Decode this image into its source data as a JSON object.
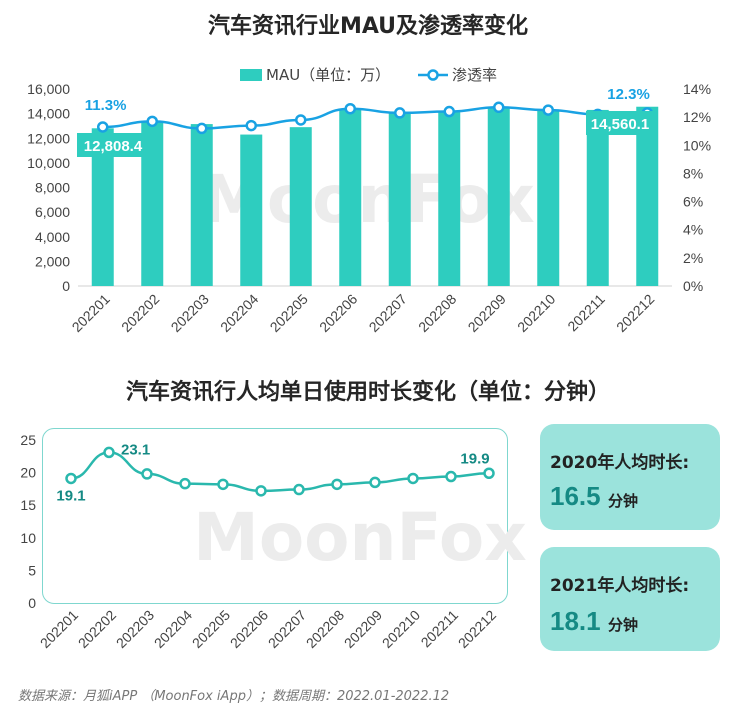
{
  "watermark": "MoonFox",
  "footer": "数据来源：月狐iAPP （MoonFox iApp）；数据周期：2022.01-2022.12",
  "colors": {
    "bar": "#2ecdbf",
    "line": "#19a2e3",
    "line2": "#2ab8ad",
    "card": "#9be3dc",
    "value_text": "#158a84"
  },
  "cards": [
    {
      "label": "2020年人均时长:",
      "value": "16.5",
      "unit": "分钟"
    },
    {
      "label": "2021年人均时长:",
      "value": "18.1",
      "unit": "分钟"
    }
  ],
  "chart_data": [
    {
      "type": "bar",
      "title": "汽车资讯行业MAU及渗透率变化",
      "categories": [
        "202201",
        "202202",
        "202203",
        "202204",
        "202205",
        "202206",
        "202207",
        "202208",
        "202209",
        "202210",
        "202211",
        "202212"
      ],
      "series": [
        {
          "name": "MAU（单位：万）",
          "type": "bar",
          "axis": "left",
          "values": [
            12808.4,
            13350,
            13150,
            12300,
            12900,
            14300,
            14150,
            14250,
            14550,
            14350,
            14300,
            14560.1
          ]
        },
        {
          "name": "渗透率",
          "type": "line",
          "axis": "right",
          "values": [
            11.3,
            11.7,
            11.2,
            11.4,
            11.8,
            12.6,
            12.3,
            12.4,
            12.7,
            12.5,
            12.2,
            12.3
          ]
        }
      ],
      "left_ticks": [
        "0",
        "2,000",
        "4,000",
        "6,000",
        "8,000",
        "10,000",
        "12,000",
        "14,000",
        "16,000"
      ],
      "right_ticks": [
        "0%",
        "2%",
        "4%",
        "6%",
        "8%",
        "10%",
        "12%",
        "14%"
      ],
      "ylim_left": [
        0,
        16000
      ],
      "ylim_right": [
        0,
        14
      ],
      "legend_position": "top",
      "data_labels": {
        "bar_first": "12,808.4",
        "bar_last": "14,560.1",
        "line_first": "11.3%",
        "line_last": "12.3%"
      }
    },
    {
      "type": "line",
      "title": "汽车资讯行人均单日使用时长变化（单位：分钟）",
      "categories": [
        "202201",
        "202202",
        "202203",
        "202204",
        "202205",
        "202206",
        "202207",
        "202208",
        "202209",
        "202210",
        "202211",
        "202212"
      ],
      "values": [
        19.1,
        23.1,
        19.8,
        18.3,
        18.2,
        17.2,
        17.4,
        18.2,
        18.5,
        19.1,
        19.4,
        19.9
      ],
      "y_ticks": [
        "0",
        "5",
        "10",
        "15",
        "20",
        "25"
      ],
      "ylim": [
        0,
        25
      ],
      "data_labels": {
        "first": "19.1",
        "max": "23.1",
        "last": "19.9"
      }
    }
  ]
}
